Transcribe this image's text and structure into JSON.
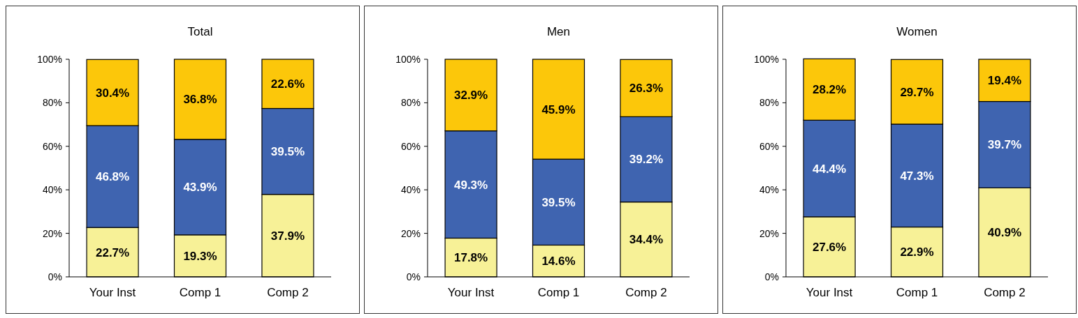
{
  "chart_data": [
    {
      "type": "bar",
      "title": "Total",
      "stacked": true,
      "categories": [
        "Your Inst",
        "Comp 1",
        "Comp 2"
      ],
      "ylim": [
        0,
        100
      ],
      "yticks": [
        {
          "value": 0,
          "label": "0%"
        },
        {
          "value": 20,
          "label": "20%"
        },
        {
          "value": 40,
          "label": "40%"
        },
        {
          "value": 60,
          "label": "60%"
        },
        {
          "value": 80,
          "label": "80%"
        },
        {
          "value": 100,
          "label": "100%"
        }
      ],
      "series": [
        {
          "color": "#f7f197",
          "values": [
            22.7,
            19.3,
            37.9
          ],
          "value_labels": [
            "22.7%",
            "19.3%",
            "37.9%"
          ]
        },
        {
          "color": "#3f64b0",
          "values": [
            46.8,
            43.9,
            39.5
          ],
          "value_labels": [
            "46.8%",
            "43.9%",
            "39.5%"
          ]
        },
        {
          "color": "#fcc70a",
          "values": [
            30.4,
            36.8,
            22.6
          ],
          "value_labels": [
            "30.4%",
            "36.8%",
            "22.6%"
          ]
        }
      ]
    },
    {
      "type": "bar",
      "title": "Men",
      "stacked": true,
      "categories": [
        "Your Inst",
        "Comp 1",
        "Comp 2"
      ],
      "ylim": [
        0,
        100
      ],
      "yticks": [
        {
          "value": 0,
          "label": "0%"
        },
        {
          "value": 20,
          "label": "20%"
        },
        {
          "value": 40,
          "label": "40%"
        },
        {
          "value": 60,
          "label": "60%"
        },
        {
          "value": 80,
          "label": "80%"
        },
        {
          "value": 100,
          "label": "100%"
        }
      ],
      "series": [
        {
          "color": "#f7f197",
          "values": [
            17.8,
            14.6,
            34.4
          ],
          "value_labels": [
            "17.8%",
            "14.6%",
            "34.4%"
          ]
        },
        {
          "color": "#3f64b0",
          "values": [
            49.3,
            39.5,
            39.2
          ],
          "value_labels": [
            "49.3%",
            "39.5%",
            "39.2%"
          ]
        },
        {
          "color": "#fcc70a",
          "values": [
            32.9,
            45.9,
            26.3
          ],
          "value_labels": [
            "32.9%",
            "45.9%",
            "26.3%"
          ]
        }
      ]
    },
    {
      "type": "bar",
      "title": "Women",
      "stacked": true,
      "categories": [
        "Your Inst",
        "Comp 1",
        "Comp 2"
      ],
      "ylim": [
        0,
        100
      ],
      "yticks": [
        {
          "value": 0,
          "label": "0%"
        },
        {
          "value": 20,
          "label": "20%"
        },
        {
          "value": 40,
          "label": "40%"
        },
        {
          "value": 60,
          "label": "60%"
        },
        {
          "value": 80,
          "label": "80%"
        },
        {
          "value": 100,
          "label": "100%"
        }
      ],
      "series": [
        {
          "color": "#f7f197",
          "values": [
            27.6,
            22.9,
            40.9
          ],
          "value_labels": [
            "27.6%",
            "22.9%",
            "40.9%"
          ]
        },
        {
          "color": "#3f64b0",
          "values": [
            44.4,
            47.3,
            39.7
          ],
          "value_labels": [
            "44.4%",
            "47.3%",
            "39.7%"
          ]
        },
        {
          "color": "#fcc70a",
          "values": [
            28.2,
            29.7,
            19.4
          ],
          "value_labels": [
            "28.2%",
            "29.7%",
            "19.4%"
          ]
        }
      ]
    }
  ]
}
